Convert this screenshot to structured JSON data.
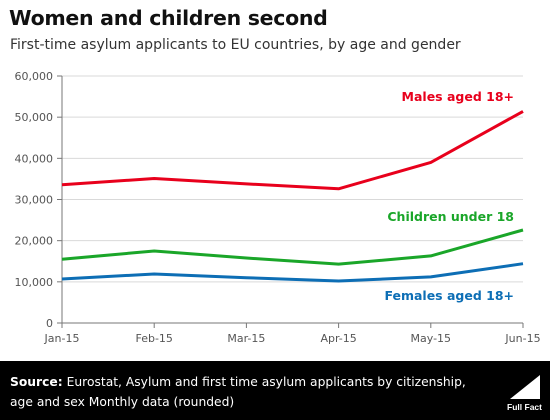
{
  "header": {
    "title": "Women and children second",
    "subtitle": "First-time asylum applicants to EU countries, by age and gender"
  },
  "chart_data": {
    "type": "line",
    "x": [
      "Jan-15",
      "Feb-15",
      "Mar-15",
      "Apr-15",
      "May-15",
      "Jun-15"
    ],
    "ylim": [
      0,
      60000
    ],
    "yticks": [
      0,
      10000,
      20000,
      30000,
      40000,
      50000,
      60000
    ],
    "ytick_labels": [
      "0",
      "10,000",
      "20,000",
      "30,000",
      "40,000",
      "50,000",
      "60,000"
    ],
    "grid": "horizontal",
    "series": [
      {
        "name": "Males aged 18+",
        "color": "#e8001c",
        "values": [
          33600,
          35100,
          33800,
          32600,
          39000,
          51400
        ]
      },
      {
        "name": "Children under 18",
        "color": "#1aa629",
        "values": [
          15500,
          17500,
          15800,
          14300,
          16300,
          22600
        ]
      },
      {
        "name": "Females aged 18+",
        "color": "#0d6eb5",
        "values": [
          10700,
          11900,
          11000,
          10200,
          11200,
          14400
        ]
      }
    ]
  },
  "footer": {
    "source_label": "Source:",
    "source_text": "Eurostat, Asylum and first time asylum applicants by citizenship, age and sex Monthly data (rounded)",
    "logo_text": "Full Fact"
  }
}
